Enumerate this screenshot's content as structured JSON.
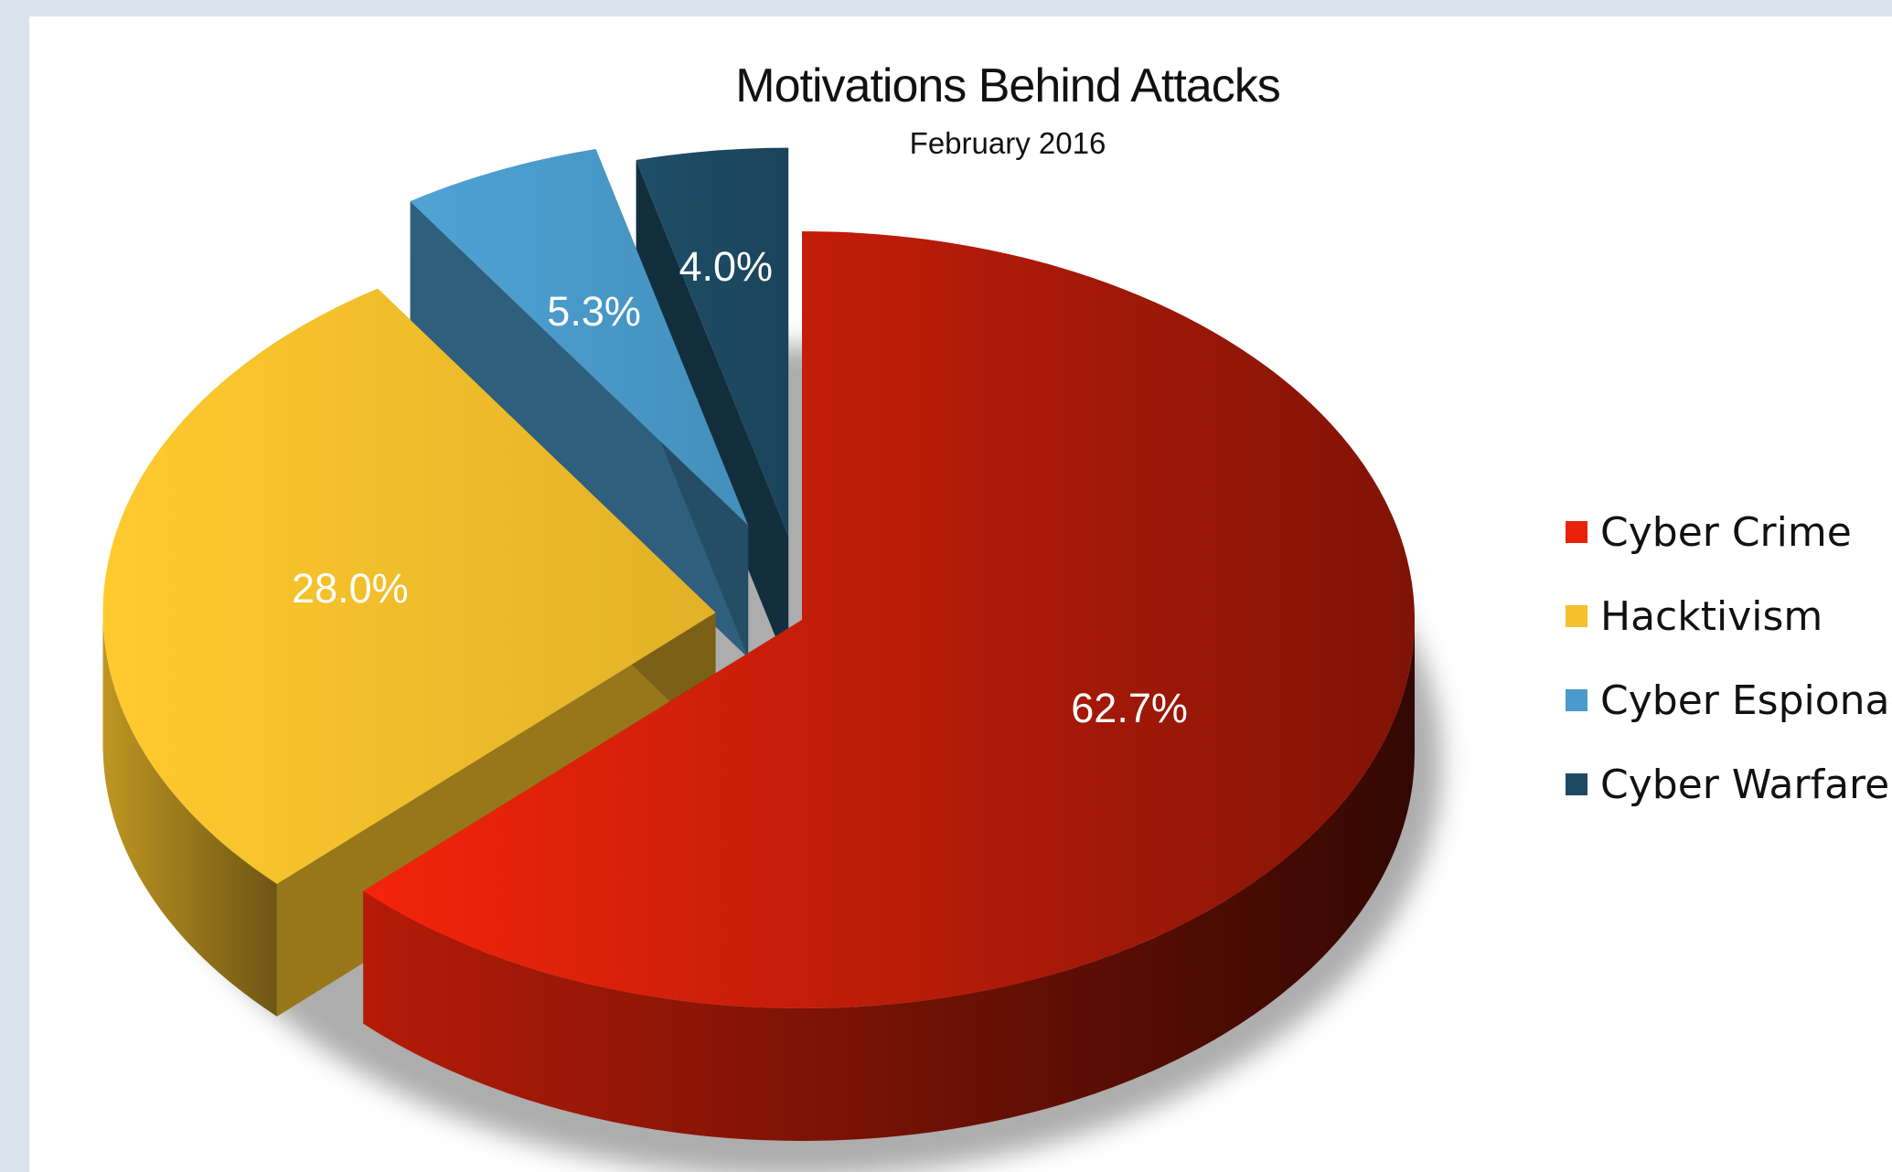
{
  "chart_data": {
    "type": "pie",
    "title": "Motivations Behind Attacks",
    "subtitle": "February 2016",
    "slices": [
      {
        "label": "Cyber Crime",
        "value": 62.7,
        "value_label": "62.7%",
        "color": "#e8230a"
      },
      {
        "label": "Hacktivism",
        "value": 28.0,
        "value_label": "28.0%",
        "color": "#f5c02c"
      },
      {
        "label": "Cyber Espionage",
        "value": 5.3,
        "value_label": "5.3%",
        "color": "#4a9bcb"
      },
      {
        "label": "Cyber Warfare",
        "value": 4.0,
        "value_label": "4.0%",
        "color": "#1d4a63"
      }
    ],
    "legend_position": "right",
    "style": "3d-exploded"
  }
}
